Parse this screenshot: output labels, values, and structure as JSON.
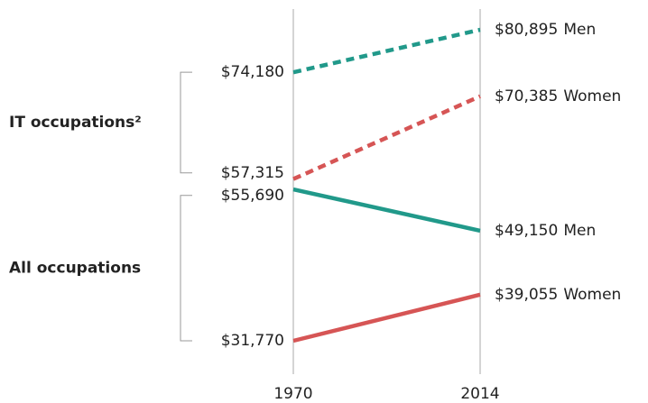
{
  "chart_data": {
    "type": "slope",
    "categories": [
      "1970",
      "2014"
    ],
    "groups": [
      {
        "label": "IT occupations²",
        "series": [
          {
            "name": "Men",
            "color": "#21998a",
            "dashed": true,
            "values": [
              74180,
              80895
            ],
            "value_labels": [
              "$74,180",
              "$80,895"
            ]
          },
          {
            "name": "Women",
            "color": "#d65555",
            "dashed": true,
            "values": [
              57315,
              70385
            ],
            "value_labels": [
              "$57,315",
              "$70,385"
            ]
          }
        ]
      },
      {
        "label": "All occupations",
        "series": [
          {
            "name": "Men",
            "color": "#21998a",
            "dashed": false,
            "values": [
              55690,
              49150
            ],
            "value_labels": [
              "$55,690",
              "$49,150"
            ]
          },
          {
            "name": "Women",
            "color": "#d65555",
            "dashed": false,
            "values": [
              31770,
              39055
            ],
            "value_labels": [
              "$31,770",
              "$39,055"
            ]
          }
        ]
      }
    ]
  }
}
